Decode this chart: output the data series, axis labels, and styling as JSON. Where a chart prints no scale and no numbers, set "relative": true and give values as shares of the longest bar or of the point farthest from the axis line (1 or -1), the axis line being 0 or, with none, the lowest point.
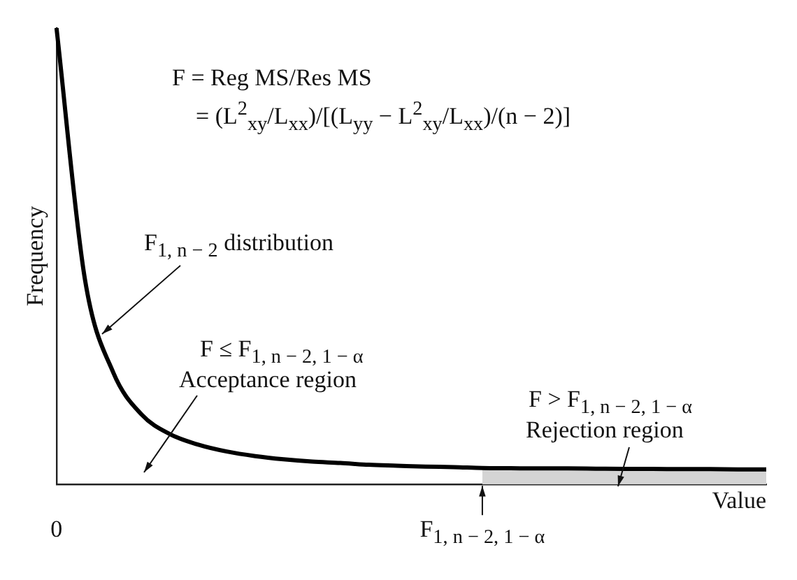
{
  "chart_data": {
    "type": "line",
    "relative": true,
    "ylabel": "Frequency",
    "xlabel": "Value",
    "categories": [
      "0",
      null,
      null,
      null,
      null,
      null,
      null,
      null,
      null,
      null,
      null,
      null,
      null,
      null,
      null,
      "F$_{1, n − 2, 1 − α}$",
      null,
      null,
      null,
      null,
      null,
      null,
      null,
      null,
      null,
      null
    ],
    "series": [
      {
        "type": "area",
        "color": "#d4d4d4",
        "values": [
          null,
          null,
          null,
          null,
          null,
          null,
          null,
          null,
          null,
          null,
          null,
          null,
          null,
          null,
          null,
          0.036,
          0.0355,
          0.035,
          0.035,
          0.0345,
          0.034,
          0.034,
          0.0335,
          0.0335,
          0.033,
          0.033
        ]
      },
      {
        "color": "#000000",
        "values": [
          1.0,
          0.45,
          0.245,
          0.153,
          0.11,
          0.087,
          0.072,
          0.062,
          0.055,
          0.05,
          0.047,
          0.043,
          0.041,
          0.039,
          0.038,
          0.036,
          0.0355,
          0.035,
          0.035,
          0.0345,
          0.034,
          0.034,
          0.0335,
          0.0335,
          0.033,
          0.033
        ]
      }
    ],
    "marker": "none",
    "line_style": "solid",
    "grid": false,
    "legend": false,
    "annotations": [
      "F = Reg MS/Res MS",
      "= (L$^{2}$$_{xy}$/L$_{xx}$)/[(L$_{yy}$ − L$^{2}$$_{xy}$/L$_{xx}$)/(n − 2)]",
      "F$_{1, n − 2}$ distribution",
      "F ≤ F$_{1, n − 2, 1 − α}$",
      "Acceptance region",
      "F > F$_{1, n − 2, 1 − α}$",
      "Rejection region"
    ]
  }
}
